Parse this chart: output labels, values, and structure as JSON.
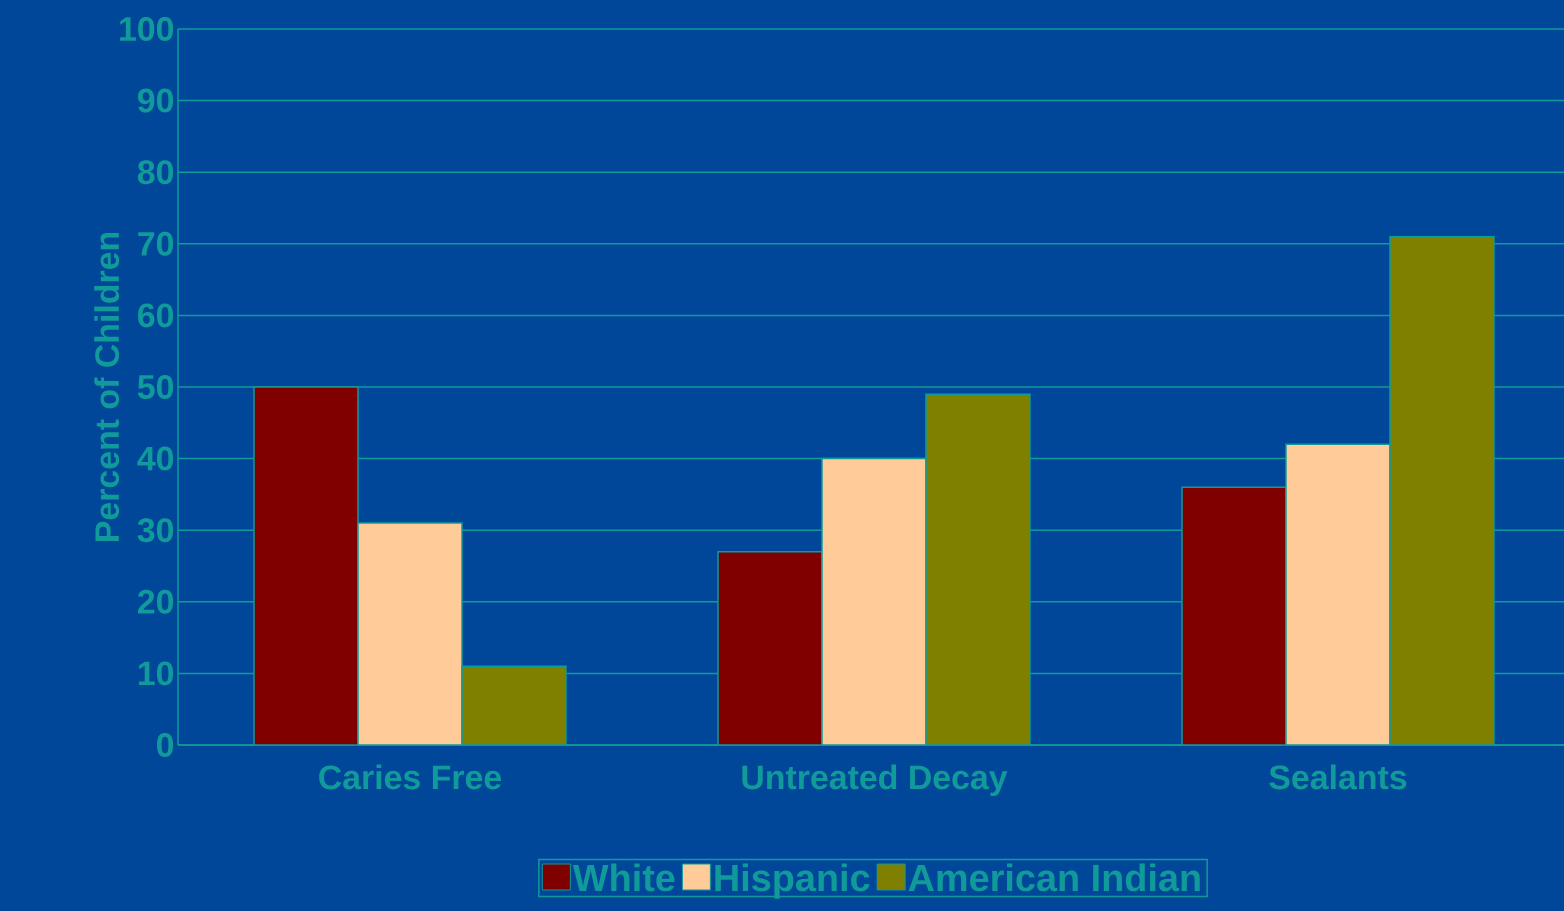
{
  "chart_data": {
    "type": "bar",
    "ylabel": "Percent of Children",
    "categories": [
      "Caries Free",
      "Untreated Decay",
      "Sealants"
    ],
    "series": [
      {
        "name": "White",
        "color": "#800000",
        "values": [
          50,
          27,
          36
        ]
      },
      {
        "name": "Hispanic",
        "color": "#ffcc99",
        "values": [
          31,
          40,
          42
        ]
      },
      {
        "name": "American Indian",
        "color": "#808000",
        "values": [
          11,
          49,
          71
        ]
      }
    ],
    "ylim": [
      0,
      100
    ],
    "yticks": [
      0,
      10,
      20,
      30,
      40,
      50,
      60,
      70,
      80,
      90,
      100
    ],
    "grid": "y",
    "legend": "bottom"
  }
}
